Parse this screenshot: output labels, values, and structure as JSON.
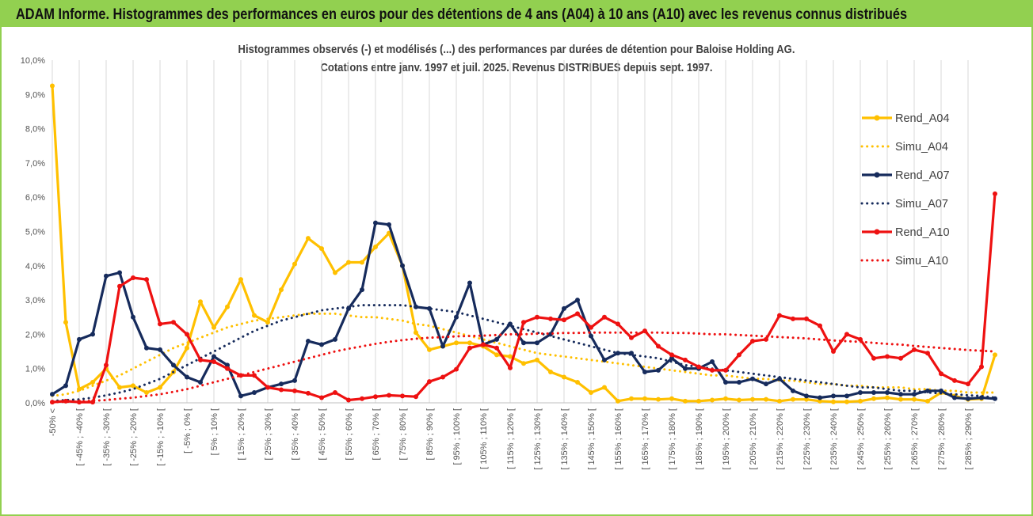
{
  "banner": {
    "title": "ADAM Informe. Histogrammes des performances en euros pour des détentions de 4 ans (A04) à 10 ans (A10) avec les revenus connus distribués"
  },
  "colors": {
    "banner_bg": "#92d050",
    "A04": "#ffc000",
    "A07": "#162b5c",
    "A10": "#ee1111"
  },
  "chart_data": {
    "type": "line",
    "title_line1": "Histogrammes observés (-) et modélisés (...)  des performances par durées de détention pour Baloise Holding AG.",
    "title_line2": "Cotations entre janv. 1997 et juil. 2025. Revenus DISTRIBUES depuis sept. 1997.",
    "ylim": [
      0,
      10
    ],
    "y_ticks": [
      "0,0%",
      "1,0%",
      "2,0%",
      "3,0%",
      "4,0%",
      "5,0%",
      "6,0%",
      "7,0%",
      "8,0%",
      "9,0%",
      "10,0%"
    ],
    "grid": "vertical",
    "legend_position": "top-right",
    "x_labels": [
      "-50% <",
      "[ -45% ; -40% [",
      "[ -35% ; -30% [",
      "[ -25% ; -20% [",
      "[ -15% ; -10% [",
      "[ -5% ; 0% [",
      "[ 5% ; 10% [",
      "[ 15% ; 20% [",
      "[ 25% ; 30% [",
      "[ 35% ; 40% [",
      "[ 45% ; 50% [",
      "[ 55% ; 60% [",
      "[ 65% ; 70% [",
      "[ 75% ; 80% [",
      "[ 85% ; 90% [",
      "[ 95% ; 100% [",
      "[ 105% ; 110% [",
      "[ 115% ; 120% [",
      "[ 125% ; 130% [",
      "[ 135% ; 140% [",
      "[ 145% ; 150% [",
      "[ 155% ; 160% [",
      "[ 165% ; 170% [",
      "[ 175% ; 180% [",
      "[ 185% ; 190% [",
      "[ 195% ; 200% [",
      "[ 205% ; 210% [",
      "[ 215% ; 220% [",
      "[ 225% ; 230% [",
      "[ 235% ; 240% [",
      "[ 245% ; 250% [",
      "[ 255% ; 260% [",
      "[ 265% ; 270% [",
      "[ 275% ; 280% [",
      "[ 285% ; 290% ["
    ],
    "series": [
      {
        "name": "Rend_A04",
        "style": "solid",
        "color": "#ffc000",
        "values": [
          9.25,
          2.35,
          0.4,
          0.6,
          1.0,
          0.45,
          0.5,
          0.3,
          0.45,
          0.9,
          1.6,
          2.95,
          2.2,
          2.8,
          3.6,
          2.55,
          2.35,
          3.3,
          4.05,
          4.8,
          4.5,
          3.8,
          4.1,
          4.1,
          4.55,
          4.95,
          4.0,
          2.05,
          1.55,
          1.65,
          1.75,
          1.75,
          1.65,
          1.4,
          1.35,
          1.15,
          1.25,
          0.9,
          0.75,
          0.6,
          0.3,
          0.45,
          0.05,
          0.12,
          0.12,
          0.1,
          0.12,
          0.05,
          0.05,
          0.08,
          0.12,
          0.08,
          0.1,
          0.1,
          0.05,
          0.1,
          0.1,
          0.05,
          0.03,
          0.03,
          0.05,
          0.12,
          0.15,
          0.1,
          0.1,
          0.05,
          0.3,
          0.2,
          0.1,
          0.12,
          1.4
        ]
      },
      {
        "name": "Simu_A04",
        "style": "dotted",
        "color": "#ffc000",
        "values": [
          0.2,
          0.25,
          0.35,
          0.5,
          0.65,
          0.8,
          1.0,
          1.2,
          1.4,
          1.6,
          1.75,
          1.9,
          2.05,
          2.2,
          2.3,
          2.4,
          2.45,
          2.5,
          2.55,
          2.6,
          2.6,
          2.6,
          2.55,
          2.5,
          2.5,
          2.45,
          2.4,
          2.3,
          2.25,
          2.15,
          2.05,
          1.95,
          1.85,
          1.75,
          1.65,
          1.55,
          1.45,
          1.4,
          1.35,
          1.3,
          1.25,
          1.2,
          1.15,
          1.1,
          1.05,
          1.0,
          0.95,
          0.9,
          0.85,
          0.8,
          0.8,
          0.75,
          0.7,
          0.7,
          0.65,
          0.65,
          0.6,
          0.55,
          0.55,
          0.5,
          0.5,
          0.45,
          0.45,
          0.45,
          0.4,
          0.4,
          0.35,
          0.35,
          0.3,
          0.3,
          0.3
        ]
      },
      {
        "name": "Rend_A07",
        "style": "solid",
        "color": "#162b5c",
        "values": [
          0.25,
          0.5,
          1.85,
          2.0,
          3.7,
          3.8,
          2.5,
          1.6,
          1.55,
          1.1,
          0.75,
          0.6,
          1.35,
          1.1,
          0.2,
          0.3,
          0.45,
          0.55,
          0.65,
          1.8,
          1.7,
          1.85,
          2.75,
          3.3,
          5.25,
          5.2,
          4.0,
          2.8,
          2.75,
          1.65,
          2.5,
          3.5,
          1.7,
          1.85,
          2.3,
          1.75,
          1.75,
          2.0,
          2.75,
          3.0,
          1.95,
          1.25,
          1.45,
          1.45,
          0.9,
          0.95,
          1.3,
          1.0,
          1.0,
          1.2,
          0.6,
          0.6,
          0.7,
          0.55,
          0.7,
          0.35,
          0.2,
          0.15,
          0.2,
          0.2,
          0.3,
          0.3,
          0.3,
          0.25,
          0.25,
          0.35,
          0.35,
          0.15,
          0.12,
          0.15,
          0.12
        ]
      },
      {
        "name": "Simu_A07",
        "style": "dotted",
        "color": "#162b5c",
        "values": [
          0.05,
          0.08,
          0.1,
          0.15,
          0.22,
          0.3,
          0.4,
          0.55,
          0.7,
          0.9,
          1.1,
          1.3,
          1.5,
          1.7,
          1.9,
          2.1,
          2.25,
          2.4,
          2.5,
          2.6,
          2.7,
          2.75,
          2.8,
          2.85,
          2.85,
          2.85,
          2.85,
          2.8,
          2.75,
          2.7,
          2.65,
          2.55,
          2.45,
          2.35,
          2.25,
          2.15,
          2.05,
          1.95,
          1.85,
          1.75,
          1.65,
          1.55,
          1.45,
          1.4,
          1.35,
          1.3,
          1.2,
          1.1,
          1.05,
          1.0,
          0.95,
          0.9,
          0.85,
          0.8,
          0.75,
          0.7,
          0.65,
          0.6,
          0.55,
          0.5,
          0.45,
          0.45,
          0.4,
          0.35,
          0.35,
          0.3,
          0.28,
          0.25,
          0.22,
          0.2,
          0.15
        ]
      },
      {
        "name": "Rend_A10",
        "style": "solid",
        "color": "#ee1111",
        "values": [
          0.02,
          0.05,
          0.02,
          0.02,
          1.1,
          3.4,
          3.65,
          3.6,
          2.3,
          2.35,
          2.0,
          1.25,
          1.2,
          1.0,
          0.8,
          0.8,
          0.45,
          0.38,
          0.35,
          0.28,
          0.15,
          0.3,
          0.08,
          0.12,
          0.18,
          0.22,
          0.2,
          0.18,
          0.62,
          0.75,
          0.98,
          1.6,
          1.7,
          1.6,
          1.02,
          2.35,
          2.5,
          2.45,
          2.42,
          2.6,
          2.2,
          2.5,
          2.3,
          1.9,
          2.1,
          1.65,
          1.4,
          1.25,
          1.05,
          0.95,
          0.95,
          1.4,
          1.8,
          1.85,
          2.55,
          2.45,
          2.45,
          2.25,
          1.5,
          2.0,
          1.85,
          1.3,
          1.35,
          1.3,
          1.55,
          1.45,
          0.85,
          0.65,
          0.55,
          1.05,
          6.1
        ]
      },
      {
        "name": "Simu_A10",
        "style": "dotted",
        "color": "#ee1111",
        "values": [
          0.02,
          0.03,
          0.04,
          0.06,
          0.08,
          0.12,
          0.15,
          0.2,
          0.25,
          0.32,
          0.4,
          0.5,
          0.6,
          0.7,
          0.8,
          0.9,
          1.0,
          1.1,
          1.2,
          1.3,
          1.4,
          1.5,
          1.58,
          1.65,
          1.72,
          1.78,
          1.83,
          1.87,
          1.9,
          1.92,
          1.94,
          1.95,
          1.96,
          1.98,
          2.0,
          2.0,
          2.02,
          2.02,
          2.04,
          2.04,
          2.05,
          2.05,
          2.05,
          2.05,
          2.05,
          2.05,
          2.04,
          2.04,
          2.02,
          2.0,
          2.0,
          1.98,
          1.96,
          1.94,
          1.92,
          1.9,
          1.88,
          1.85,
          1.82,
          1.8,
          1.78,
          1.75,
          1.72,
          1.7,
          1.66,
          1.63,
          1.6,
          1.57,
          1.54,
          1.52,
          1.5
        ]
      }
    ]
  }
}
